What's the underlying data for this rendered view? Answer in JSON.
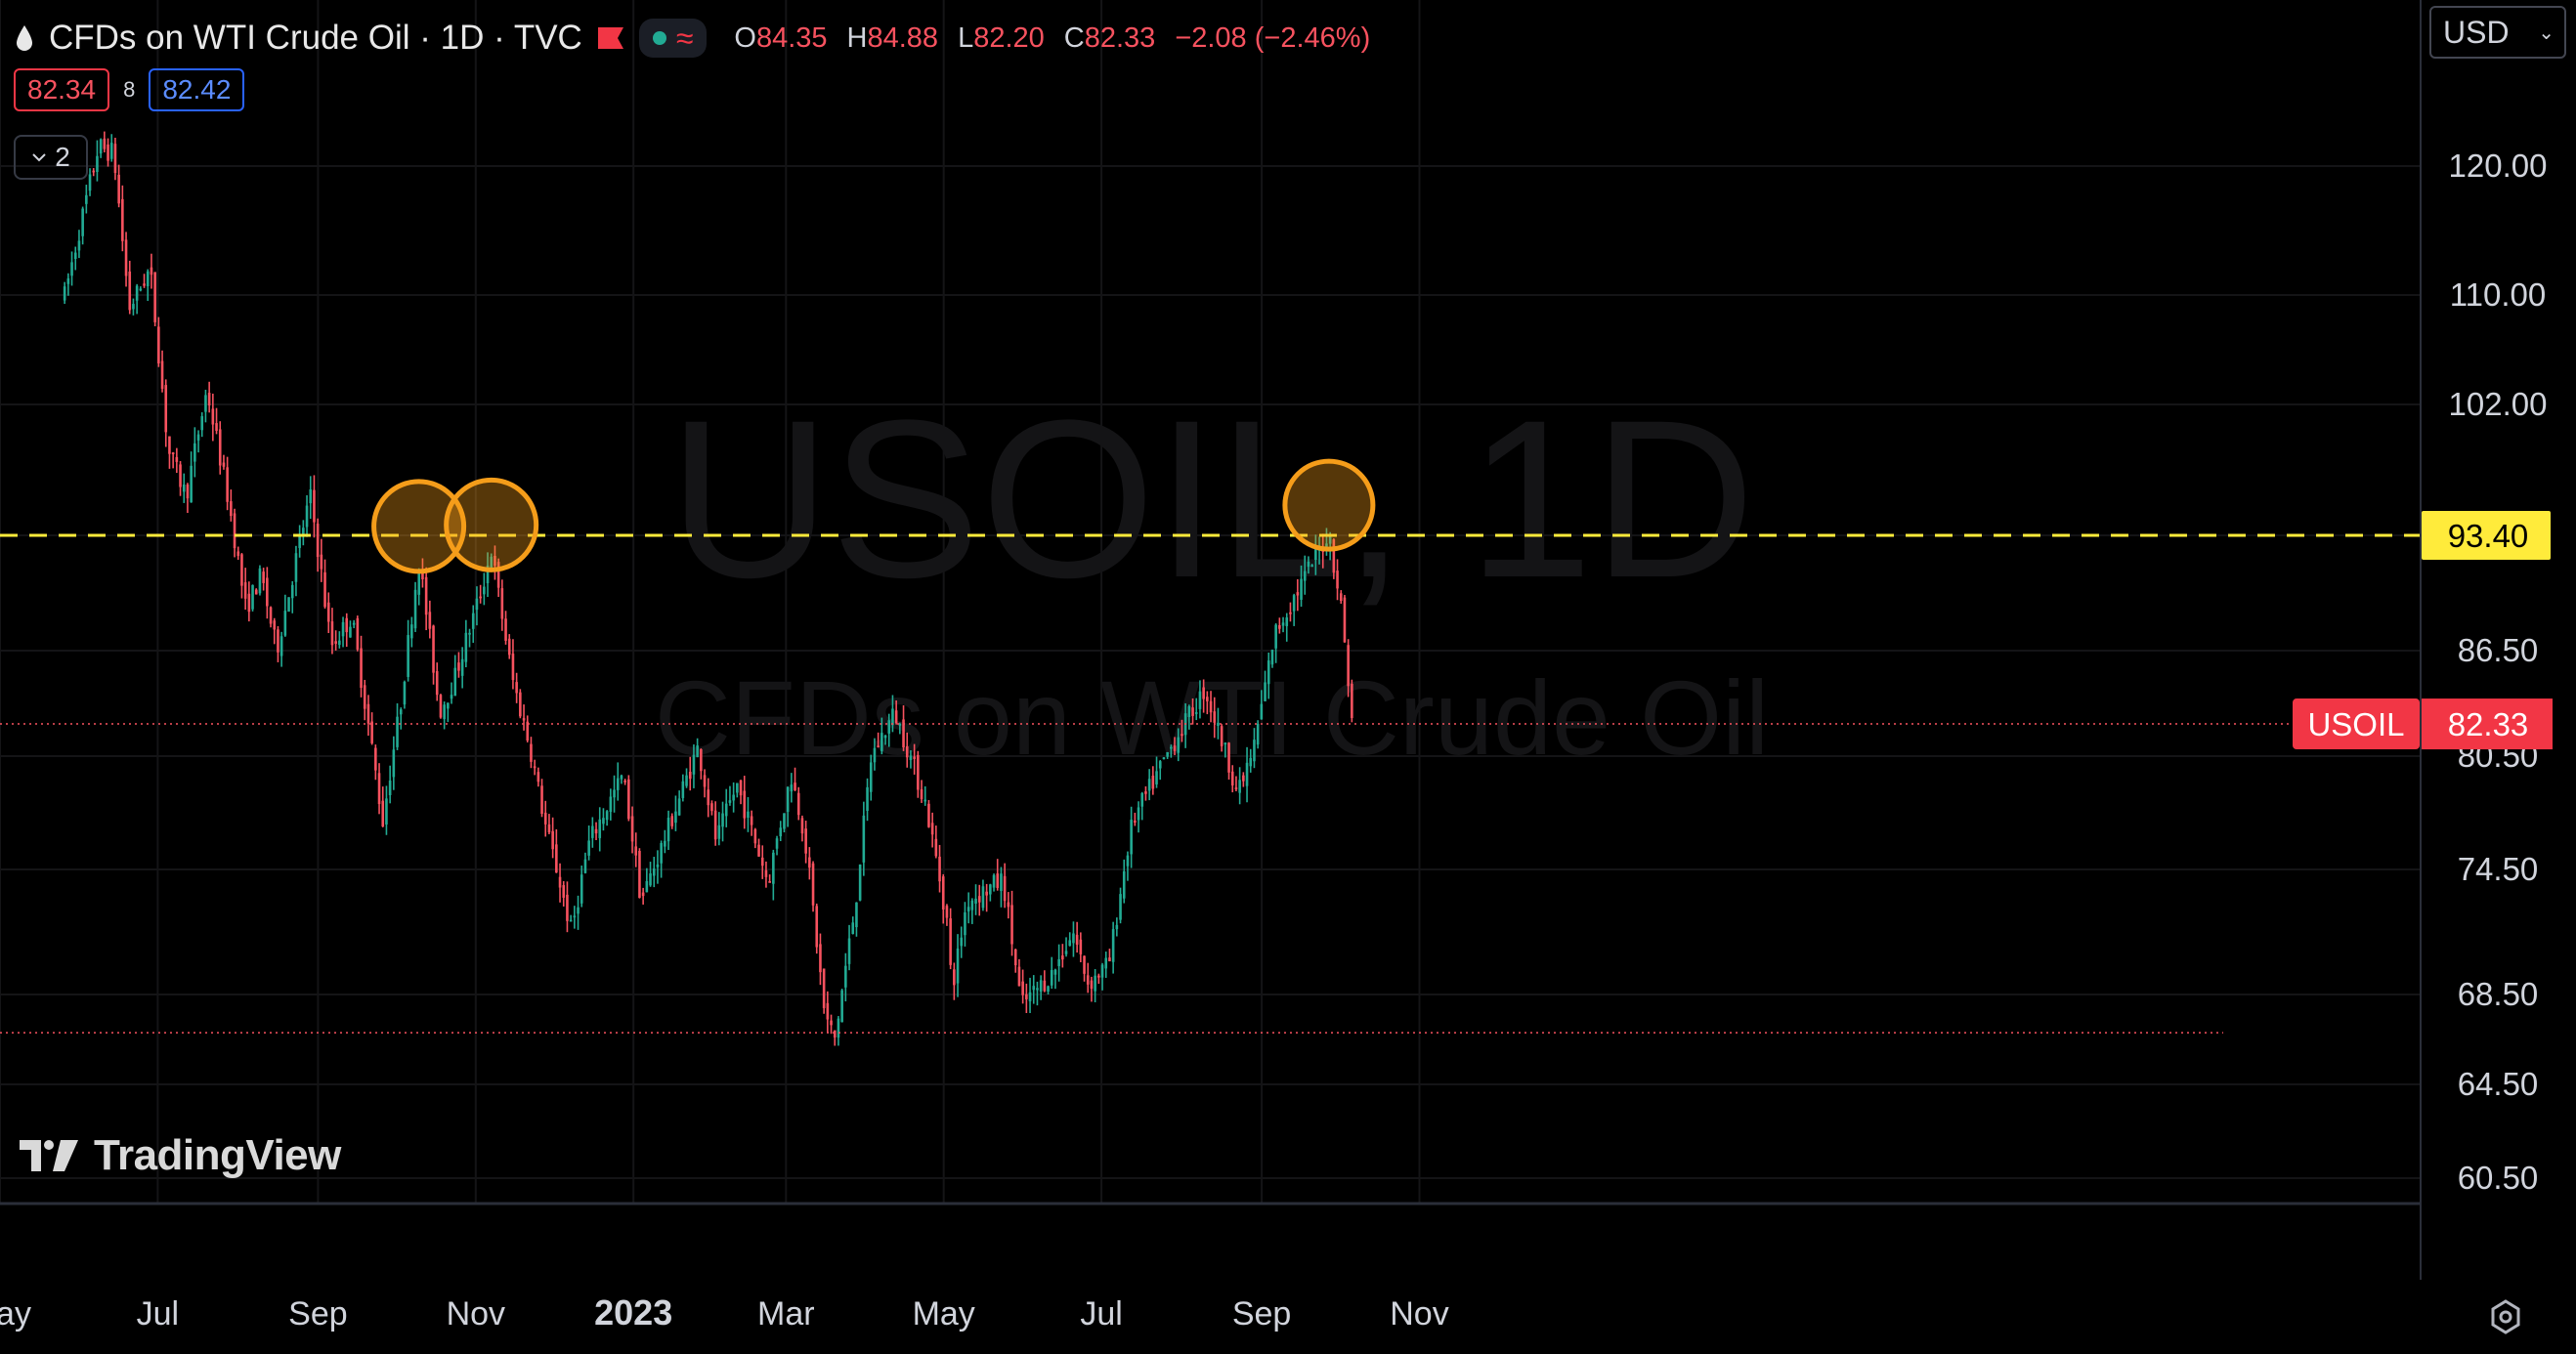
{
  "header": {
    "title": "CFDs on WTI Crude Oil · 1D · TVC",
    "ohlc": {
      "o_label": "O",
      "o_value": "84.35",
      "h_label": "H",
      "h_value": "84.88",
      "l_label": "L",
      "l_value": "82.20",
      "c_label": "C",
      "c_value": "82.33",
      "change": "−2.08 (−2.46%)"
    },
    "bid": "82.34",
    "spread": "8",
    "ask": "82.42",
    "collapse_count": "2"
  },
  "currency": "USD",
  "watermark": {
    "symbol": "USOIL, 1D",
    "name": "CFDs on WTI Crude Oil"
  },
  "logo_text": "TradingView",
  "colors": {
    "up": "#22ab94",
    "down": "#f7525f",
    "level": "#ffeb3b",
    "marker": "#f59d1a",
    "background": "#000000",
    "price_label": "#f23645"
  },
  "chart_data": {
    "type": "candlestick",
    "symbol": "USOIL",
    "y_axis_ticks": [
      "120.00",
      "110.00",
      "102.00",
      "93.40",
      "86.50",
      "80.50",
      "74.50",
      "68.50",
      "64.50",
      "60.50"
    ],
    "x_axis_ticks": [
      "ay",
      "Jul",
      "Sep",
      "Nov",
      "2023",
      "Mar",
      "May",
      "Jul",
      "Sep",
      "Nov"
    ],
    "horizontal_level": {
      "value": 93.4,
      "style": "dashed",
      "label": "93.40"
    },
    "last_price": {
      "label": "USOIL",
      "value": "82.33"
    },
    "circled_highs": [
      {
        "date": "2022-10-10",
        "value": 93.6
      },
      {
        "date": "2022-11-07",
        "value": 93.7
      },
      {
        "date": "2023-09-27",
        "value": 95.0
      }
    ],
    "support_line": 66.8,
    "series_path": [
      {
        "d": "2022-05-26",
        "v": 110
      },
      {
        "d": "2022-06-08",
        "v": 121.5
      },
      {
        "d": "2022-06-14",
        "v": 121
      },
      {
        "d": "2022-06-20",
        "v": 109
      },
      {
        "d": "2022-06-28",
        "v": 112
      },
      {
        "d": "2022-07-05",
        "v": 99
      },
      {
        "d": "2022-07-12",
        "v": 96
      },
      {
        "d": "2022-07-20",
        "v": 103
      },
      {
        "d": "2022-07-28",
        "v": 96
      },
      {
        "d": "2022-08-04",
        "v": 89
      },
      {
        "d": "2022-08-10",
        "v": 91
      },
      {
        "d": "2022-08-16",
        "v": 86.5
      },
      {
        "d": "2022-08-29",
        "v": 96
      },
      {
        "d": "2022-09-06",
        "v": 86.8
      },
      {
        "d": "2022-09-14",
        "v": 88.5
      },
      {
        "d": "2022-09-26",
        "v": 77
      },
      {
        "d": "2022-10-03",
        "v": 83.5
      },
      {
        "d": "2022-10-10",
        "v": 92
      },
      {
        "d": "2022-10-18",
        "v": 83
      },
      {
        "d": "2022-10-24",
        "v": 85
      },
      {
        "d": "2022-11-03",
        "v": 90
      },
      {
        "d": "2022-11-07",
        "v": 92.5
      },
      {
        "d": "2022-11-15",
        "v": 85
      },
      {
        "d": "2022-11-22",
        "v": 81
      },
      {
        "d": "2022-11-28",
        "v": 76.8
      },
      {
        "d": "2022-12-08",
        "v": 71.5
      },
      {
        "d": "2022-12-15",
        "v": 76
      },
      {
        "d": "2022-12-28",
        "v": 79.5
      },
      {
        "d": "2023-01-04",
        "v": 73
      },
      {
        "d": "2023-01-10",
        "v": 75
      },
      {
        "d": "2023-01-26",
        "v": 81
      },
      {
        "d": "2023-02-02",
        "v": 76
      },
      {
        "d": "2023-02-10",
        "v": 79
      },
      {
        "d": "2023-02-22",
        "v": 73.9
      },
      {
        "d": "2023-03-03",
        "v": 79.5
      },
      {
        "d": "2023-03-08",
        "v": 76.5
      },
      {
        "d": "2023-03-16",
        "v": 67.5
      },
      {
        "d": "2023-03-20",
        "v": 66.5
      },
      {
        "d": "2023-03-28",
        "v": 73
      },
      {
        "d": "2023-04-03",
        "v": 80.5
      },
      {
        "d": "2023-04-12",
        "v": 83
      },
      {
        "d": "2023-04-24",
        "v": 78
      },
      {
        "d": "2023-05-03",
        "v": 71.5
      },
      {
        "d": "2023-05-04",
        "v": 68.6
      },
      {
        "d": "2023-05-10",
        "v": 73
      },
      {
        "d": "2023-05-24",
        "v": 74
      },
      {
        "d": "2023-05-31",
        "v": 68
      },
      {
        "d": "2023-06-12",
        "v": 69.5
      },
      {
        "d": "2023-06-20",
        "v": 71.5
      },
      {
        "d": "2023-06-26",
        "v": 69
      },
      {
        "d": "2023-07-04",
        "v": 70
      },
      {
        "d": "2023-07-13",
        "v": 77
      },
      {
        "d": "2023-07-31",
        "v": 81.8
      },
      {
        "d": "2023-08-10",
        "v": 84.3
      },
      {
        "d": "2023-08-23",
        "v": 78.5
      },
      {
        "d": "2023-08-29",
        "v": 81
      },
      {
        "d": "2023-09-06",
        "v": 87.5
      },
      {
        "d": "2023-09-18",
        "v": 91
      },
      {
        "d": "2023-09-27",
        "v": 93.6
      },
      {
        "d": "2023-10-02",
        "v": 88.8
      },
      {
        "d": "2023-10-06",
        "v": 82.3
      }
    ]
  }
}
